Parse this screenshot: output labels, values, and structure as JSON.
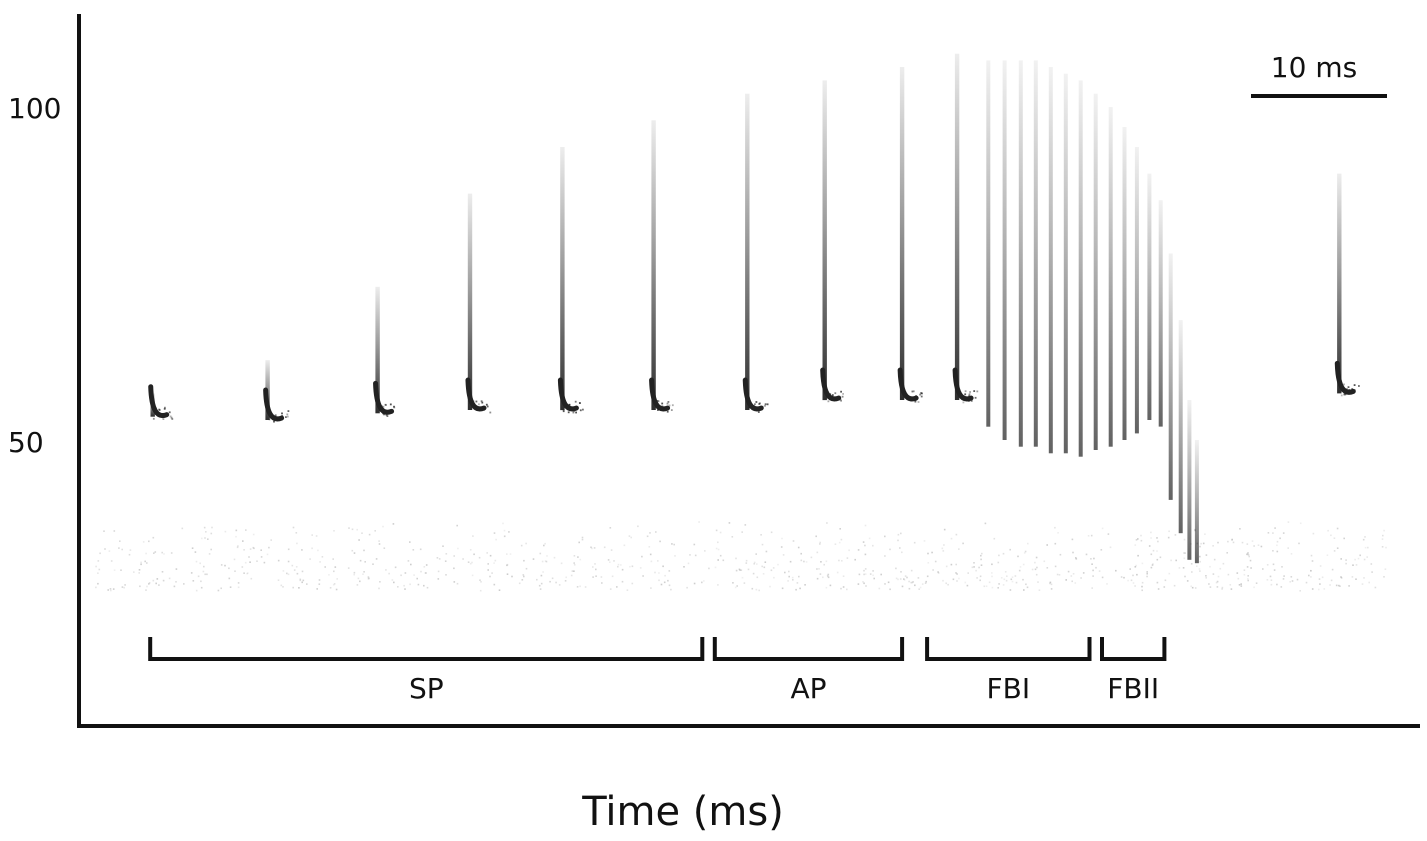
{
  "chart_data": {
    "type": "scatter",
    "description_kind": "sonogram",
    "xlabel": "Time (ms)",
    "ylabel": "",
    "yticks": [
      {
        "value": 100,
        "label": "100"
      },
      {
        "value": 50,
        "label": "50"
      }
    ],
    "ylim": [
      8,
      113
    ],
    "xlim": [
      0,
      100
    ],
    "scale_bar": {
      "label": "10 ms",
      "duration": 10
    },
    "phases": [
      {
        "name": "SP",
        "start": 1.3,
        "end": 45.5
      },
      {
        "name": "AP",
        "start": 46.5,
        "end": 61.5
      },
      {
        "name": "FBI",
        "start": 63.5,
        "end": 76.5
      },
      {
        "name": "FBII",
        "start": 77.5,
        "end": 82.5
      }
    ],
    "series": [
      {
        "values": [
          {
            "x": 1.5,
            "top": 57,
            "bottom": 53.5
          },
          {
            "x": 10.7,
            "top": 62,
            "bottom": 53
          },
          {
            "x": 19.5,
            "top": 73,
            "bottom": 54
          },
          {
            "x": 26.9,
            "top": 87,
            "bottom": 54.5
          },
          {
            "x": 34.3,
            "top": 94,
            "bottom": 54.5
          },
          {
            "x": 41.6,
            "top": 98,
            "bottom": 54.5
          },
          {
            "x": 49.1,
            "top": 102,
            "bottom": 54.5
          },
          {
            "x": 55.3,
            "top": 104,
            "bottom": 56
          },
          {
            "x": 61.5,
            "top": 106,
            "bottom": 56
          },
          {
            "x": 65.9,
            "top": 108,
            "bottom": 56
          },
          {
            "x": 68.4,
            "top": 107,
            "bottom": 52
          },
          {
            "x": 69.7,
            "top": 107,
            "bottom": 50
          },
          {
            "x": 71.0,
            "top": 107,
            "bottom": 49
          },
          {
            "x": 72.2,
            "top": 107,
            "bottom": 49
          },
          {
            "x": 73.4,
            "top": 106,
            "bottom": 48
          },
          {
            "x": 74.6,
            "top": 105,
            "bottom": 48
          },
          {
            "x": 75.8,
            "top": 104,
            "bottom": 47.5
          },
          {
            "x": 77.0,
            "top": 102,
            "bottom": 48.5
          },
          {
            "x": 78.2,
            "top": 100,
            "bottom": 49
          },
          {
            "x": 79.3,
            "top": 97,
            "bottom": 50
          },
          {
            "x": 80.3,
            "top": 94,
            "bottom": 51
          },
          {
            "x": 81.3,
            "top": 90,
            "bottom": 53
          },
          {
            "x": 82.2,
            "top": 86,
            "bottom": 52
          },
          {
            "x": 83.0,
            "top": 78,
            "bottom": 41
          },
          {
            "x": 83.8,
            "top": 68,
            "bottom": 36
          },
          {
            "x": 84.5,
            "top": 56,
            "bottom": 32
          },
          {
            "x": 85.1,
            "top": 50,
            "bottom": 31.5
          },
          {
            "x": 96.5,
            "top": 90,
            "bottom": 57
          }
        ]
      }
    ],
    "colors": {
      "ink": "#111111",
      "trace": "#222222",
      "noise": "#9a9a9a"
    }
  }
}
